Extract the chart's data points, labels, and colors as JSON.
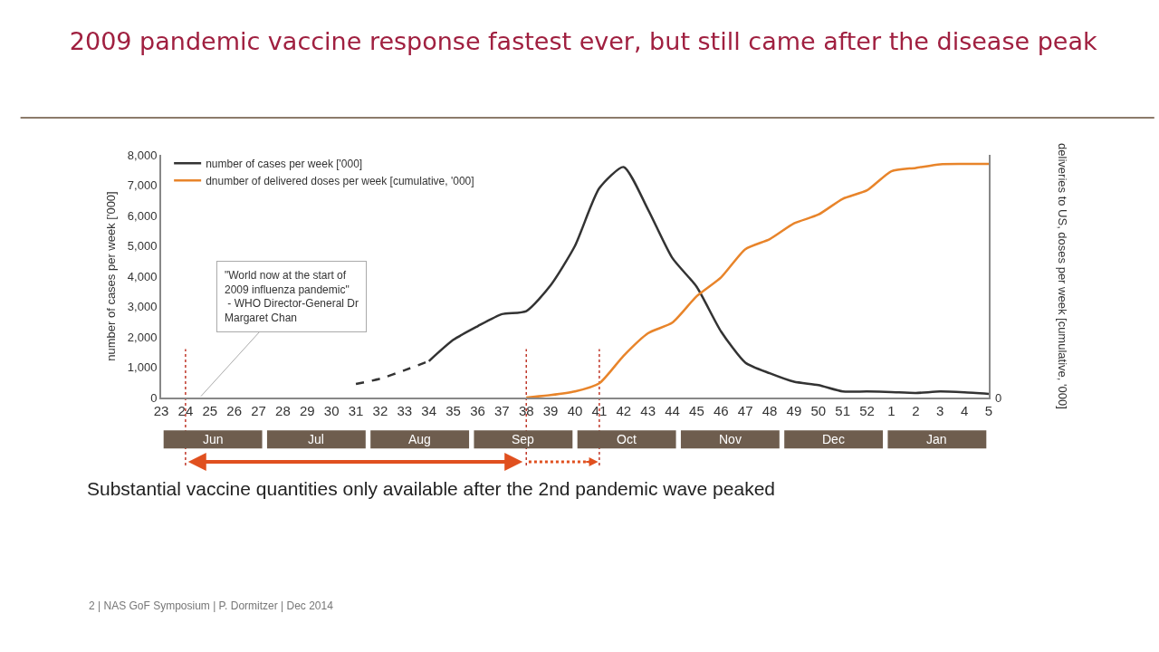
{
  "chart_data": {
    "type": "line",
    "title": "2009 pandemic vaccine response fastest ever, but still came after the disease peak",
    "ylabel": "number of cases per week ['000]",
    "categories": [
      "23",
      "24",
      "25",
      "26",
      "27",
      "28",
      "29",
      "30",
      "31",
      "32",
      "33",
      "34",
      "35",
      "36",
      "37",
      "38",
      "39",
      "40",
      "41",
      "42",
      "43",
      "44",
      "45",
      "46",
      "47",
      "48",
      "49",
      "50",
      "51",
      "52",
      "1",
      "2",
      "3",
      "4",
      "5"
    ],
    "series": [
      {
        "color": "#333333",
        "line_style": "dashed",
        "values": [
          null,
          null,
          null,
          null,
          null,
          null,
          null,
          null,
          450,
          620,
          900,
          1200,
          null,
          null,
          null,
          null,
          null,
          null,
          null,
          null,
          null,
          null,
          null,
          null,
          null,
          null,
          null,
          null,
          null,
          null,
          null,
          null,
          null,
          null,
          null
        ]
      },
      {
        "name": "number of cases per week ['000]",
        "color": "#333333",
        "values": [
          null,
          null,
          null,
          null,
          null,
          null,
          null,
          null,
          null,
          null,
          null,
          1200,
          1900,
          2350,
          2750,
          2850,
          3700,
          5000,
          6900,
          7600,
          6200,
          4600,
          3650,
          2180,
          1150,
          800,
          520,
          410,
          200,
          200,
          180,
          150,
          200,
          170,
          120
        ]
      },
      {
        "name": "dnumber of delivered doses per week [cumulative, '000]",
        "color": "#e8842a",
        "values": [
          null,
          null,
          null,
          null,
          null,
          null,
          null,
          null,
          null,
          null,
          null,
          null,
          null,
          null,
          null,
          0,
          80,
          200,
          470,
          1380,
          2120,
          2470,
          3340,
          3960,
          4890,
          5220,
          5740,
          6030,
          6550,
          6830,
          7460,
          7570,
          7690,
          7700,
          7700
        ]
      }
    ],
    "ylim": [
      0,
      8000
    ],
    "yticks": [
      0,
      {
        "value": 1000,
        "label": "1,000"
      },
      {
        "value": 2000,
        "label": "2,000"
      },
      {
        "value": 3000,
        "label": "3,000"
      },
      {
        "value": 4000,
        "label": "4,000"
      },
      {
        "value": 5000,
        "label": "5,000"
      },
      {
        "value": 6000,
        "label": "6,000"
      },
      {
        "value": 7000,
        "label": "7,000"
      },
      {
        "value": 8000,
        "label": "8,000"
      }
    ],
    "line_style": "solid",
    "legend": "top left",
    "ref_lines": [
      {
        "axis": "x",
        "value": "24",
        "color": "#c0392b",
        "line_style": "dotted"
      },
      {
        "axis": "x",
        "value": "38",
        "color": "#c0392b",
        "line_style": "dotted"
      },
      {
        "axis": "x",
        "value": "41",
        "color": "#c0392b",
        "line_style": "dotted"
      }
    ],
    "annotations": [
      "\"World now at the start of\n2009 influenza pandemic\"\n - WHO Director-General Dr\nMargaret Chan",
      "Jun",
      "Jul",
      "Aug",
      "Sep",
      "Oct",
      "Nov",
      "Dec",
      "Jan",
      "0",
      "deliveries to US, doses per week [cumulative, '000]",
      "Substantial vaccine quantities only available after the 2nd pandemic wave peaked",
      "2 | NAS GoF Symposium | P. Dormitzer | Dec 2014"
    ]
  }
}
